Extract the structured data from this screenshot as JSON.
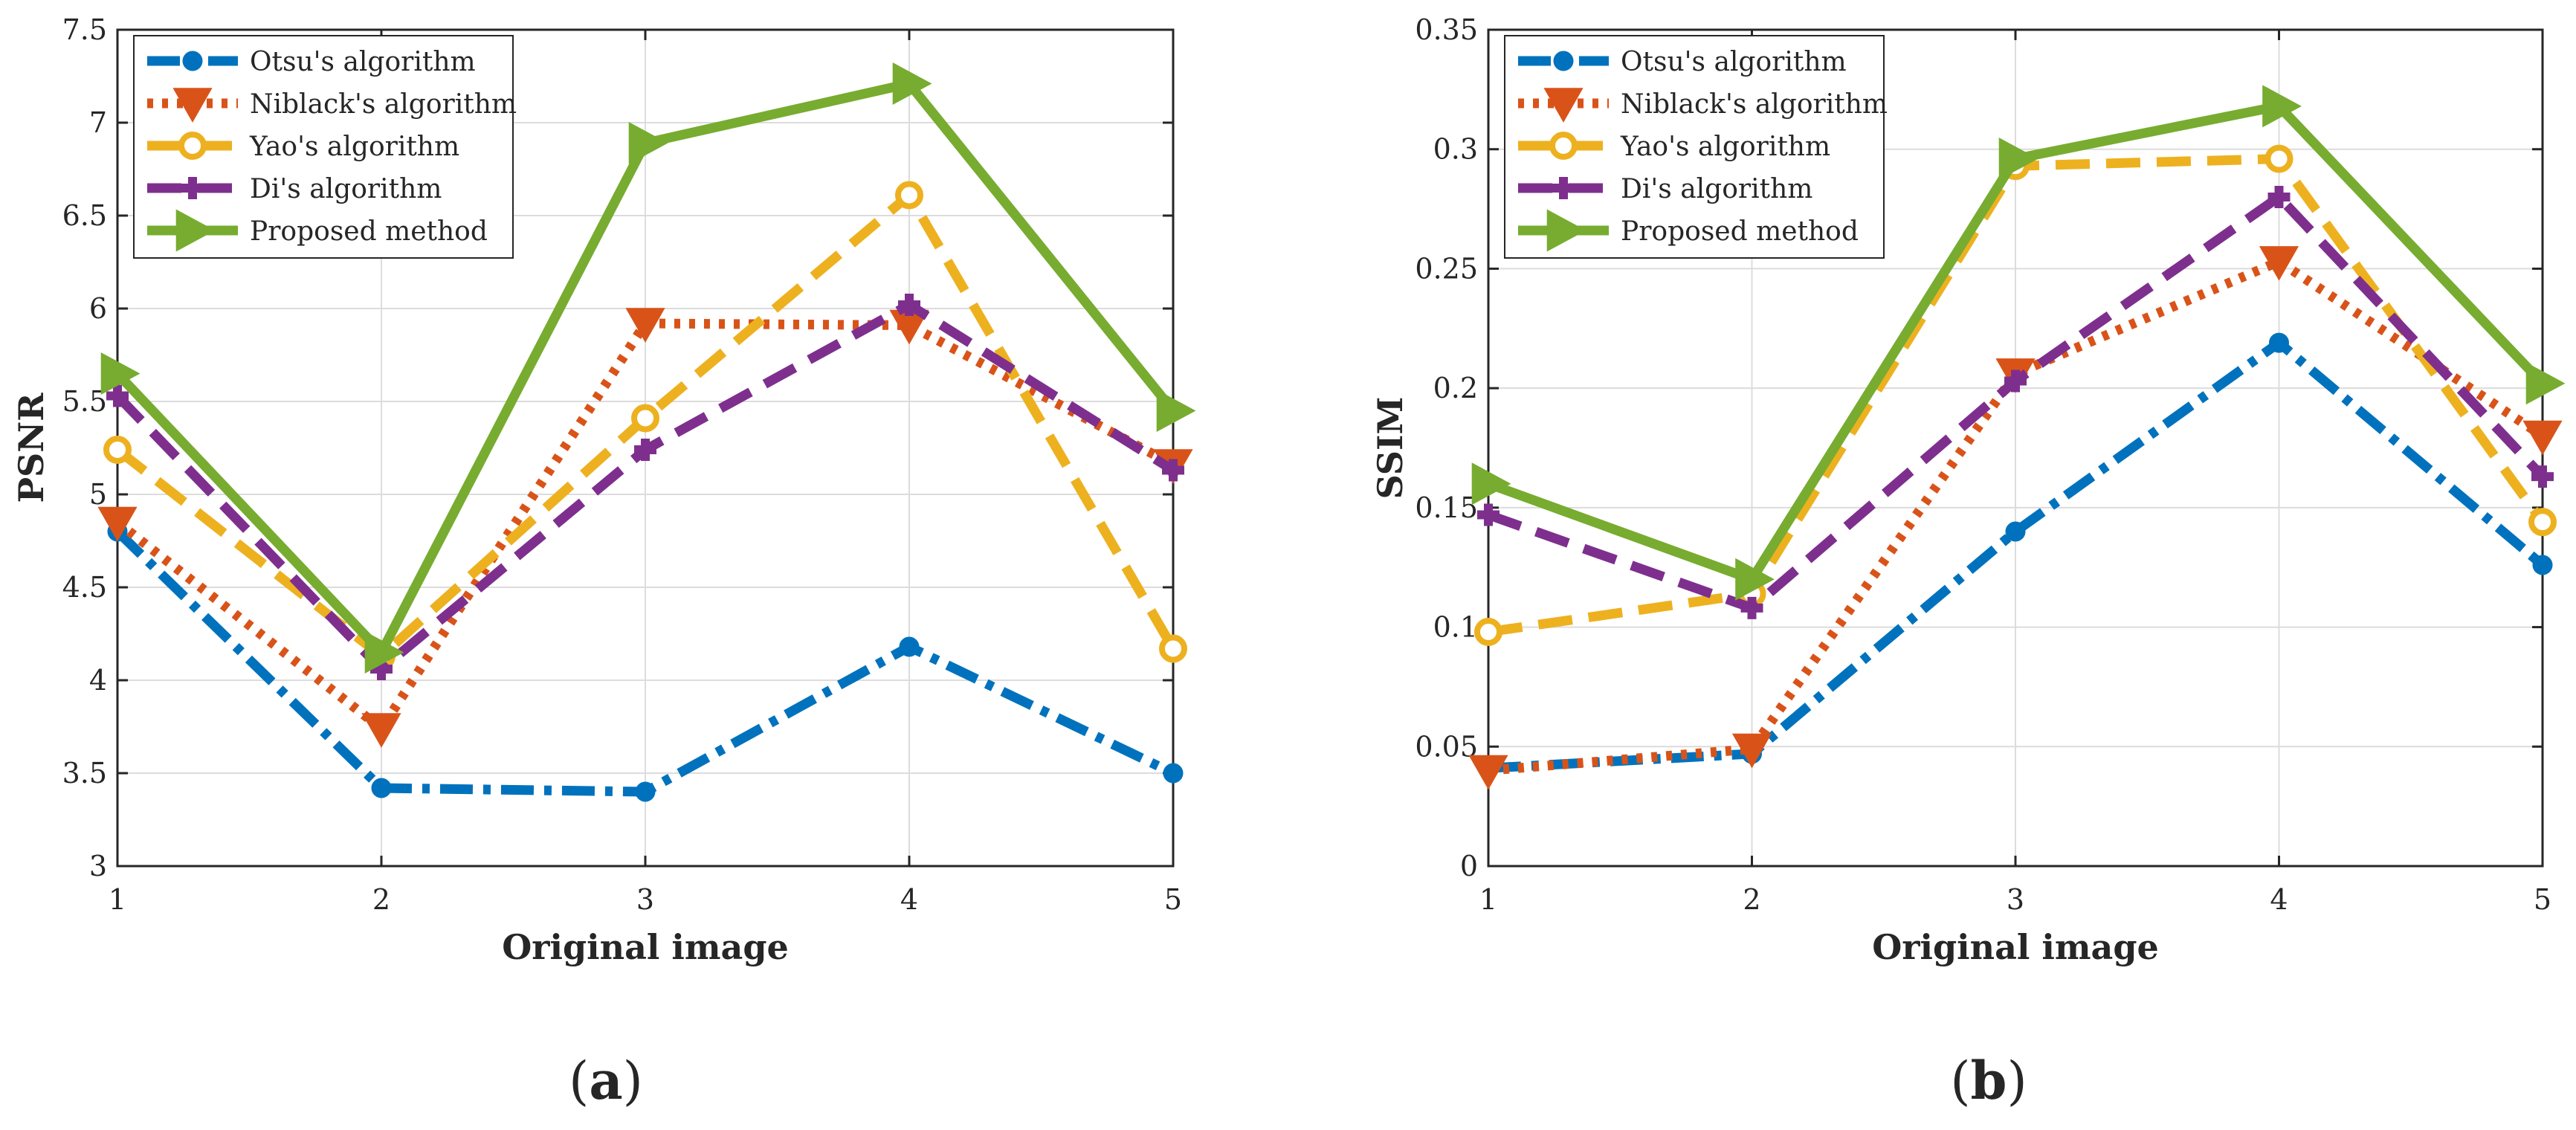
{
  "figure": {
    "panel_labels": [
      {
        "open": "(",
        "letter": "a",
        "close": ")"
      },
      {
        "open": "(",
        "letter": "b",
        "close": ")"
      }
    ]
  },
  "chart_data": [
    {
      "type": "line",
      "x": [
        1,
        2,
        3,
        4,
        5
      ],
      "xlabel": "Original image",
      "ylabel": "PSNR",
      "xlim": [
        1,
        5
      ],
      "ylim": [
        3,
        7.5
      ],
      "xticks": [
        "1",
        "2",
        "3",
        "4",
        "5"
      ],
      "yticks": [
        "3",
        "3.5",
        "4",
        "4.5",
        "5",
        "5.5",
        "6",
        "6.5",
        "7",
        "7.5"
      ],
      "ytick_values": [
        3,
        3.5,
        4,
        4.5,
        5,
        5.5,
        6,
        6.5,
        7,
        7.5
      ],
      "grid": true,
      "legend_location": "top-left",
      "series": [
        {
          "name": "Otsu's algorithm",
          "values": [
            4.8,
            3.42,
            3.4,
            4.18,
            3.5
          ],
          "color": "#0072BD",
          "marker": "circle",
          "dash": "dashdot"
        },
        {
          "name": "Niblack's algorithm",
          "values": [
            4.85,
            3.74,
            5.92,
            5.91,
            5.16
          ],
          "color": "#D95319",
          "marker": "triangle-down",
          "dash": "dotted"
        },
        {
          "name": "Yao's algorithm",
          "values": [
            5.24,
            4.13,
            5.41,
            6.61,
            4.17
          ],
          "color": "#EDB120",
          "marker": "circle-open",
          "dash": "dashed"
        },
        {
          "name": "Di's algorithm",
          "values": [
            5.53,
            4.06,
            5.24,
            6.02,
            5.13
          ],
          "color": "#7E2F8E",
          "marker": "plus",
          "dash": "dashed"
        },
        {
          "name": "Proposed method",
          "values": [
            5.65,
            4.15,
            6.89,
            7.21,
            5.45
          ],
          "color": "#77AC30",
          "marker": "triangle-right",
          "dash": "solid"
        }
      ]
    },
    {
      "type": "line",
      "x": [
        1,
        2,
        3,
        4,
        5
      ],
      "xlabel": "Original image",
      "ylabel": "SSIM",
      "xlim": [
        1,
        5
      ],
      "ylim": [
        0,
        0.35
      ],
      "xticks": [
        "1",
        "2",
        "3",
        "4",
        "5"
      ],
      "yticks": [
        "0",
        "0.05",
        "0.1",
        "0.15",
        "0.2",
        "0.25",
        "0.3",
        "0.35"
      ],
      "ytick_values": [
        0,
        0.05,
        0.1,
        0.15,
        0.2,
        0.25,
        0.3,
        0.35
      ],
      "grid": true,
      "legend_location": "top-left",
      "series": [
        {
          "name": "Otsu's algorithm",
          "values": [
            0.041,
            0.047,
            0.14,
            0.219,
            0.126
          ],
          "color": "#0072BD",
          "marker": "circle",
          "dash": "dashdot"
        },
        {
          "name": "Niblack's algorithm",
          "values": [
            0.04,
            0.049,
            0.206,
            0.253,
            0.18
          ],
          "color": "#D95319",
          "marker": "triangle-down",
          "dash": "dotted"
        },
        {
          "name": "Yao's algorithm",
          "values": [
            0.098,
            0.114,
            0.293,
            0.296,
            0.144
          ],
          "color": "#EDB120",
          "marker": "circle-open",
          "dash": "dashed"
        },
        {
          "name": "Di's algorithm",
          "values": [
            0.147,
            0.108,
            0.203,
            0.28,
            0.163
          ],
          "color": "#7E2F8E",
          "marker": "plus",
          "dash": "dashed"
        },
        {
          "name": "Proposed method",
          "values": [
            0.16,
            0.12,
            0.296,
            0.318,
            0.202
          ],
          "color": "#77AC30",
          "marker": "triangle-right",
          "dash": "solid"
        }
      ]
    }
  ]
}
